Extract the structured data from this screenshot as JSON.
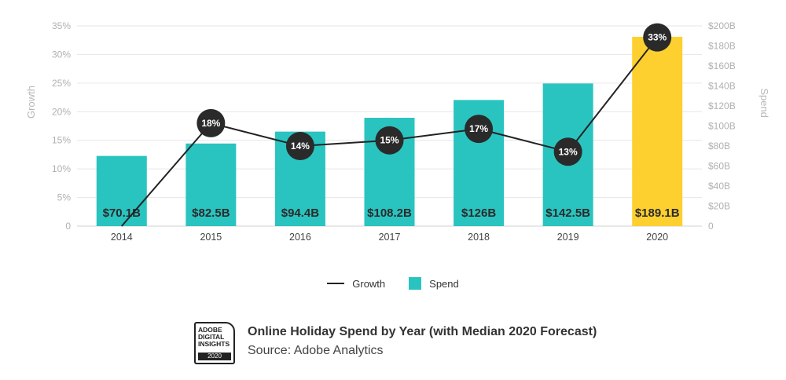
{
  "chart_data": {
    "type": "bar",
    "categories": [
      "2014",
      "2015",
      "2016",
      "2017",
      "2018",
      "2019",
      "2020"
    ],
    "series": [
      {
        "name": "Spend",
        "type": "bar",
        "axis": "right",
        "values": [
          70.1,
          82.5,
          94.4,
          108.2,
          126,
          142.5,
          189.1
        ],
        "labels": [
          "$70.1B",
          "$82.5B",
          "$94.4B",
          "$108.2B",
          "$126B",
          "$142.5B",
          "$189.1B"
        ],
        "color": "#29c4c0",
        "highlight_color": "#fdd02f",
        "highlight_index": 6
      },
      {
        "name": "Growth",
        "type": "line",
        "axis": "left",
        "values": [
          0,
          18,
          14,
          15,
          17,
          13,
          33
        ],
        "labels": [
          "",
          "18%",
          "14%",
          "15%",
          "17%",
          "13%",
          "33%"
        ],
        "color": "#222222"
      }
    ],
    "y_left": {
      "label": "Growth",
      "lim": [
        0,
        35
      ],
      "ticks": [
        "0",
        "5%",
        "10%",
        "15%",
        "20%",
        "25%",
        "30%",
        "35%"
      ]
    },
    "y_right": {
      "label": "Spend",
      "lim": [
        0,
        200
      ],
      "ticks": [
        "0",
        "$20B",
        "$40B",
        "$60B",
        "$80B",
        "$100B",
        "$120B",
        "$140B",
        "$160B",
        "$180B",
        "$200B"
      ]
    },
    "grid": true,
    "legend": "bottom"
  },
  "legend": {
    "growth_label": "Growth",
    "spend_label": "Spend"
  },
  "footer": {
    "logo_text": "ADOBE\nDIGITAL\nINSIGHTS",
    "logo_year": "2020",
    "title": "Online Holiday Spend by Year (with Median 2020 Forecast)",
    "source": "Source: Adobe Analytics"
  }
}
